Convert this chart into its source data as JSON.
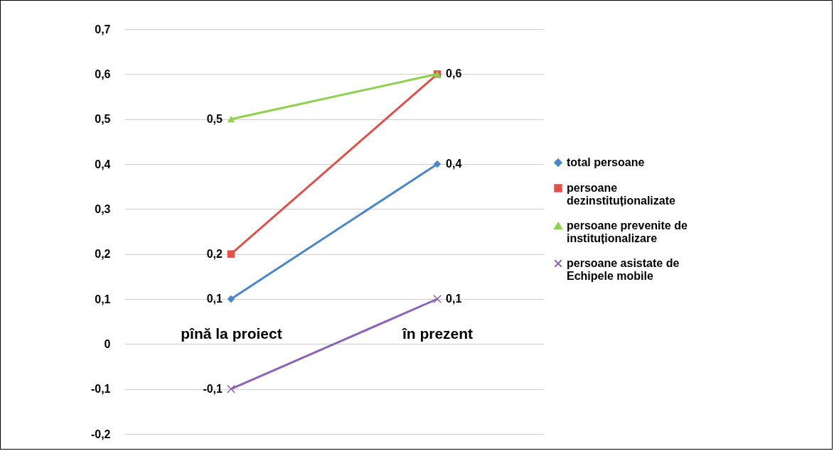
{
  "chart_data": {
    "type": "line",
    "categories": [
      "pînă la proiect",
      "în prezent"
    ],
    "series": [
      {
        "name": "total persoane",
        "color": "#4a86c8",
        "marker": "diamond",
        "values": [
          0.1,
          0.4
        ],
        "value_labels": [
          "0,1",
          "0,4"
        ]
      },
      {
        "name": "persoane dezinstituționalizate",
        "color": "#e0514b",
        "marker": "square",
        "values": [
          0.2,
          0.6
        ],
        "value_labels": [
          "0,2",
          "0,6"
        ]
      },
      {
        "name": "persoane prevenite de instituționalizare",
        "color": "#8fd04f",
        "marker": "triangle",
        "values": [
          0.5,
          0.6
        ],
        "value_labels": [
          "0,5",
          null
        ]
      },
      {
        "name": "persoane asistate de Echipele mobile",
        "color": "#8b63b8",
        "marker": "cross",
        "values": [
          -0.1,
          0.1
        ],
        "value_labels": [
          "-0,1",
          "0,1"
        ]
      }
    ],
    "ylim": [
      -0.2,
      0.7
    ],
    "yticks": [
      {
        "value": -0.2,
        "label": "-0,2"
      },
      {
        "value": -0.1,
        "label": "-0,1"
      },
      {
        "value": 0,
        "label": "0"
      },
      {
        "value": 0.1,
        "label": "0,1"
      },
      {
        "value": 0.2,
        "label": "0,2"
      },
      {
        "value": 0.3,
        "label": "0,3"
      },
      {
        "value": 0.4,
        "label": "0,4"
      },
      {
        "value": 0.5,
        "label": "0,5"
      },
      {
        "value": 0.6,
        "label": "0,6"
      },
      {
        "value": 0.7,
        "label": "0,7"
      }
    ],
    "grid": "y",
    "legend": "right"
  }
}
